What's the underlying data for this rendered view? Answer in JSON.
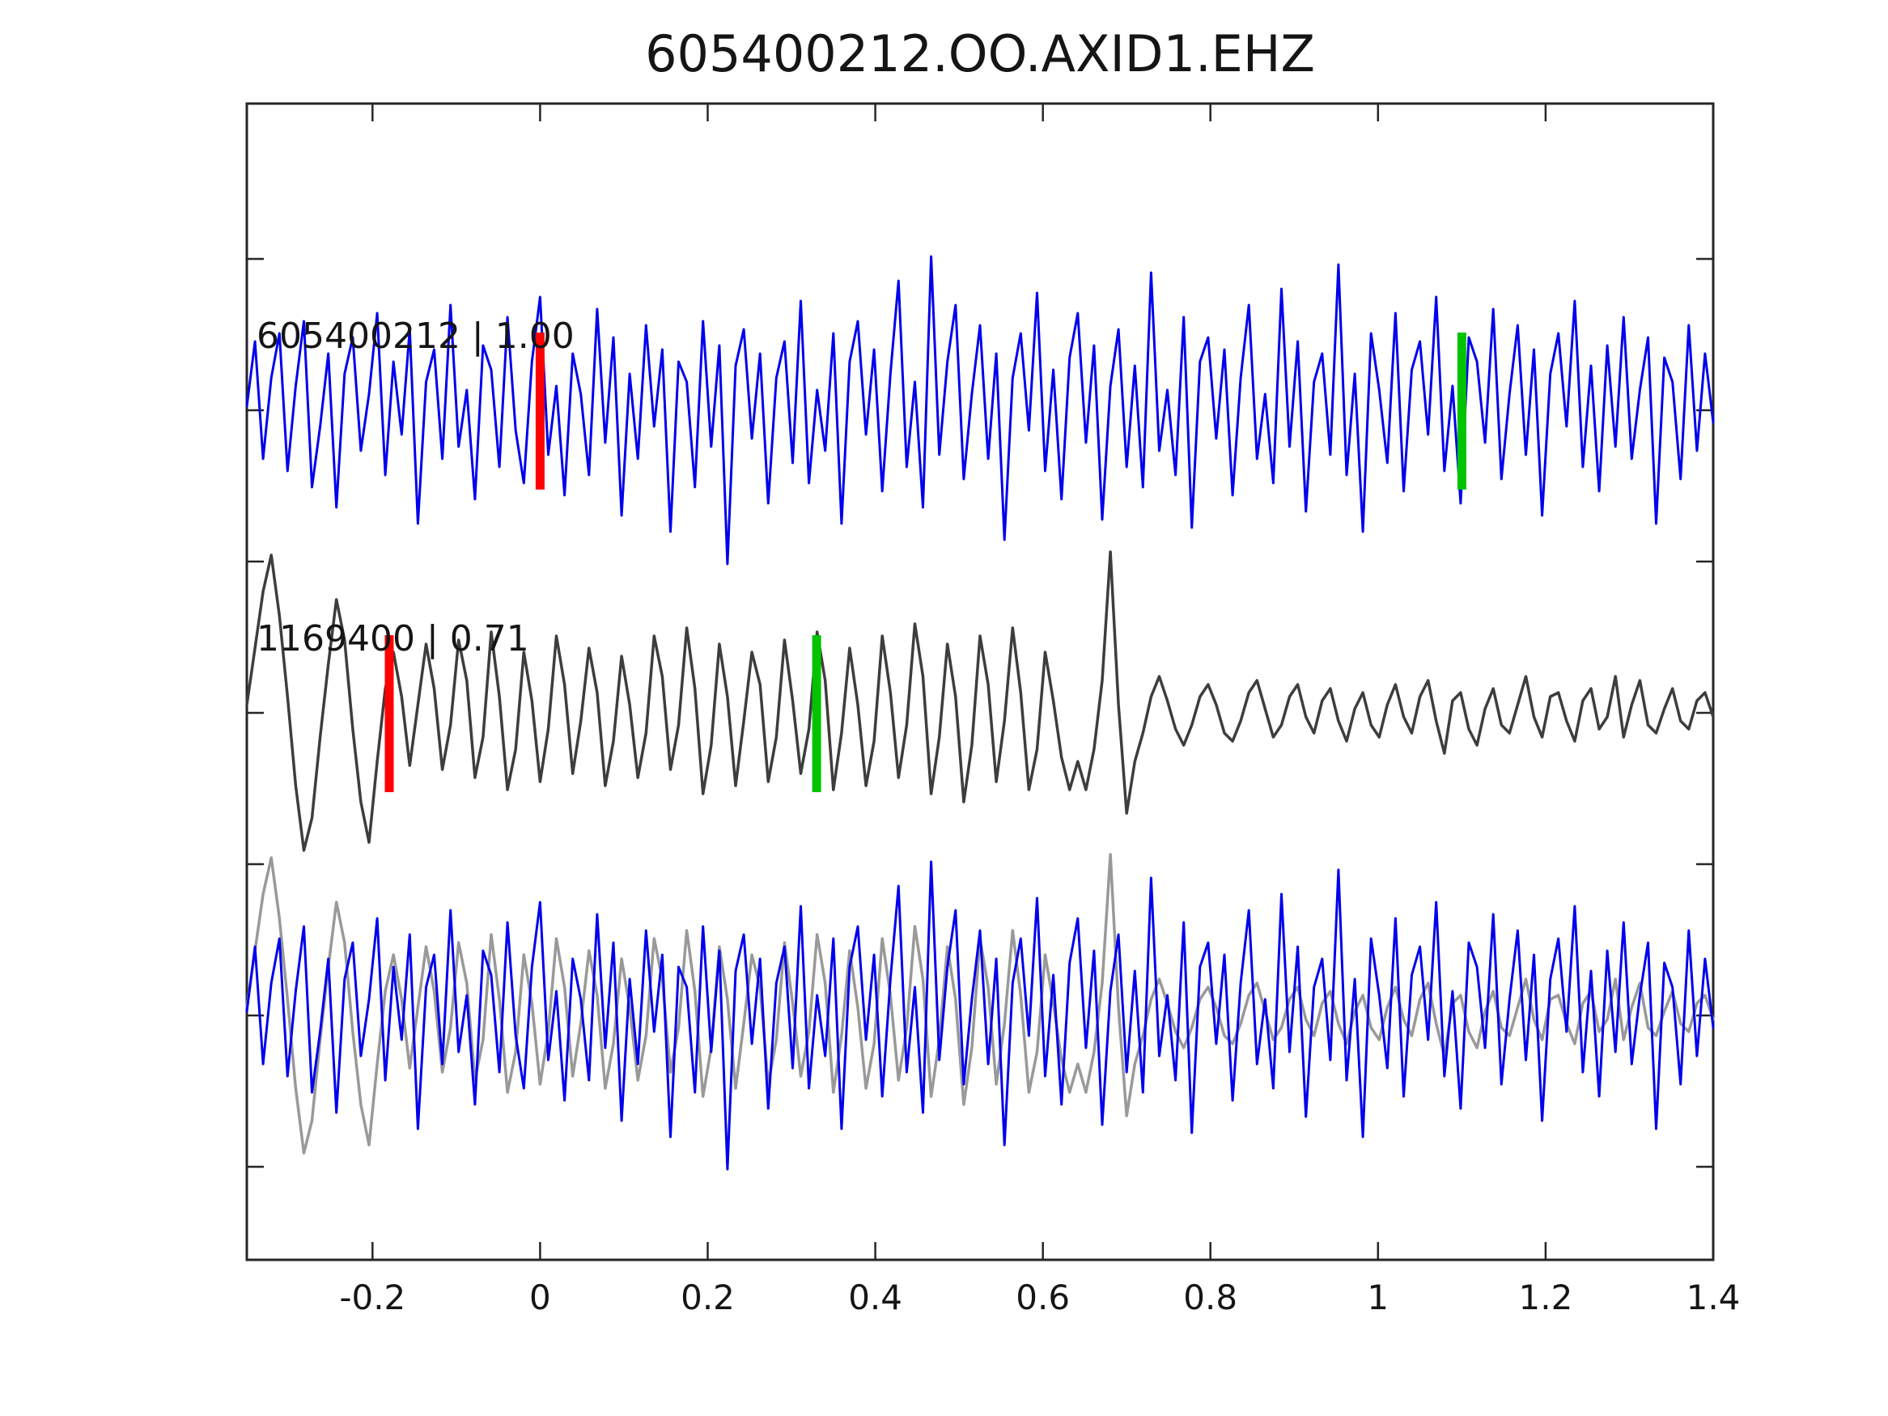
{
  "title": "605400212.OO.AXID1.EHZ",
  "colors": {
    "blue_trace": "#0000ee",
    "template_dark_gray": "#3d3d3d",
    "template_light_gray": "#999999",
    "red_pick": "#ff0000",
    "green_pick": "#00c400",
    "axis": "#262626",
    "text": "#151515"
  },
  "chart_data": {
    "type": "line",
    "title": "605400212.OO.AXID1.EHZ",
    "subtitle": "",
    "xlabel": "",
    "ylabel": "",
    "grid": false,
    "legend": null,
    "xlim": [
      -0.35,
      1.4
    ],
    "xticks": [
      {
        "value": -0.2,
        "label": "-0.2"
      },
      {
        "value": 0.0,
        "label": "0"
      },
      {
        "value": 0.2,
        "label": "0.2"
      },
      {
        "value": 0.4,
        "label": "0.4"
      },
      {
        "value": 0.6,
        "label": "0.6"
      },
      {
        "value": 0.8,
        "label": "0.8"
      },
      {
        "value": 1.0,
        "label": "1"
      },
      {
        "value": 1.2,
        "label": "1.2"
      },
      {
        "value": 1.4,
        "label": "1.4"
      }
    ],
    "yticks_labeled": false,
    "x0": -0.35,
    "dx": 0.0097222,
    "rows": [
      {
        "label": "605400212 | 1.00",
        "series": [
          {
            "ref": "A",
            "color": "#0000ee",
            "lw": 3
          }
        ],
        "markers": [
          {
            "x": 0.0,
            "color": "#ff0000",
            "name": "red-pick"
          },
          {
            "x": 1.1,
            "color": "#00c400",
            "name": "green-pick"
          }
        ]
      },
      {
        "label": "1169400 | 0.71",
        "series": [
          {
            "ref": "B",
            "color": "#3d3d3d",
            "lw": 3.5
          }
        ],
        "markers": [
          {
            "x": -0.18,
            "color": "#ff0000",
            "name": "red-pick"
          },
          {
            "x": 0.33,
            "color": "#00c400",
            "name": "green-pick"
          }
        ]
      },
      {
        "label": null,
        "series": [
          {
            "ref": "B",
            "color": "#999999",
            "lw": 3.5
          },
          {
            "ref": "A",
            "color": "#0000ee",
            "lw": 3
          }
        ],
        "markers": []
      }
    ],
    "samples": {
      "A": [
        5,
        85,
        -60,
        40,
        95,
        -75,
        30,
        110,
        -95,
        -20,
        70,
        -120,
        45,
        90,
        -50,
        20,
        120,
        -80,
        60,
        -30,
        100,
        -140,
        35,
        75,
        -60,
        130,
        -45,
        25,
        -110,
        80,
        50,
        -70,
        115,
        -25,
        -90,
        60,
        140,
        -55,
        30,
        -105,
        70,
        20,
        -80,
        125,
        -40,
        90,
        -130,
        45,
        -60,
        105,
        -20,
        75,
        -150,
        60,
        35,
        -95,
        110,
        -45,
        80,
        -190,
        55,
        100,
        -35,
        70,
        -115,
        40,
        85,
        -65,
        135,
        -90,
        25,
        -50,
        95,
        -140,
        60,
        110,
        -30,
        75,
        -100,
        45,
        160,
        -70,
        35,
        -120,
        190,
        -55,
        60,
        130,
        -85,
        20,
        105,
        -60,
        70,
        -160,
        40,
        95,
        -25,
        145,
        -75,
        50,
        -110,
        65,
        120,
        -40,
        80,
        -135,
        30,
        100,
        -70,
        55,
        -95,
        170,
        -50,
        25,
        -80,
        115,
        -145,
        60,
        90,
        -35,
        75,
        -105,
        40,
        130,
        -60,
        20,
        -90,
        150,
        -45,
        85,
        -125,
        35,
        70,
        -55,
        180,
        -80,
        45,
        -150,
        95,
        25,
        -65,
        120,
        -100,
        50,
        85,
        -30,
        140,
        -75,
        30,
        -115,
        90,
        60,
        -40,
        125,
        -85,
        20,
        105,
        -55,
        75,
        -130,
        45,
        95,
        -20,
        135,
        -70,
        55,
        -100,
        80,
        -45,
        115,
        -60,
        25,
        90,
        -140,
        65,
        35,
        -85,
        105,
        -50,
        70,
        -15
      ],
      "B": [
        10,
        80,
        150,
        195,
        120,
        20,
        -90,
        -170,
        -130,
        -30,
        60,
        140,
        90,
        -20,
        -110,
        -160,
        -60,
        30,
        75,
        20,
        -65,
        10,
        85,
        30,
        -70,
        -15,
        90,
        40,
        -80,
        -30,
        100,
        20,
        -95,
        -45,
        75,
        15,
        -85,
        -20,
        95,
        35,
        -75,
        -10,
        80,
        25,
        -90,
        -35,
        70,
        10,
        -80,
        -25,
        95,
        45,
        -70,
        -15,
        105,
        30,
        -100,
        -40,
        85,
        20,
        -90,
        -10,
        75,
        35,
        -85,
        -30,
        90,
        15,
        -75,
        -20,
        100,
        40,
        -95,
        -25,
        80,
        10,
        -90,
        -35,
        95,
        25,
        -80,
        -15,
        110,
        45,
        -100,
        -30,
        85,
        20,
        -110,
        -40,
        95,
        35,
        -85,
        -10,
        105,
        25,
        -95,
        -45,
        75,
        15,
        -55,
        -95,
        -60,
        -95,
        -45,
        40,
        199,
        10,
        -124,
        -60,
        -25,
        20,
        45,
        15,
        -20,
        -40,
        -15,
        20,
        35,
        10,
        -25,
        -35,
        -10,
        25,
        40,
        5,
        -30,
        -15,
        20,
        35,
        -5,
        -25,
        15,
        30,
        -10,
        -35,
        5,
        25,
        -15,
        -30,
        10,
        35,
        -5,
        -25,
        20,
        40,
        -10,
        -50,
        15,
        25,
        -20,
        -40,
        5,
        30,
        -15,
        -25,
        10,
        45,
        -5,
        -30,
        20,
        25,
        -10,
        -35,
        15,
        30,
        -20,
        -5,
        45,
        -30,
        10,
        40,
        -15,
        -25,
        5,
        30,
        -10,
        -20,
        15,
        25,
        -5
      ]
    }
  }
}
